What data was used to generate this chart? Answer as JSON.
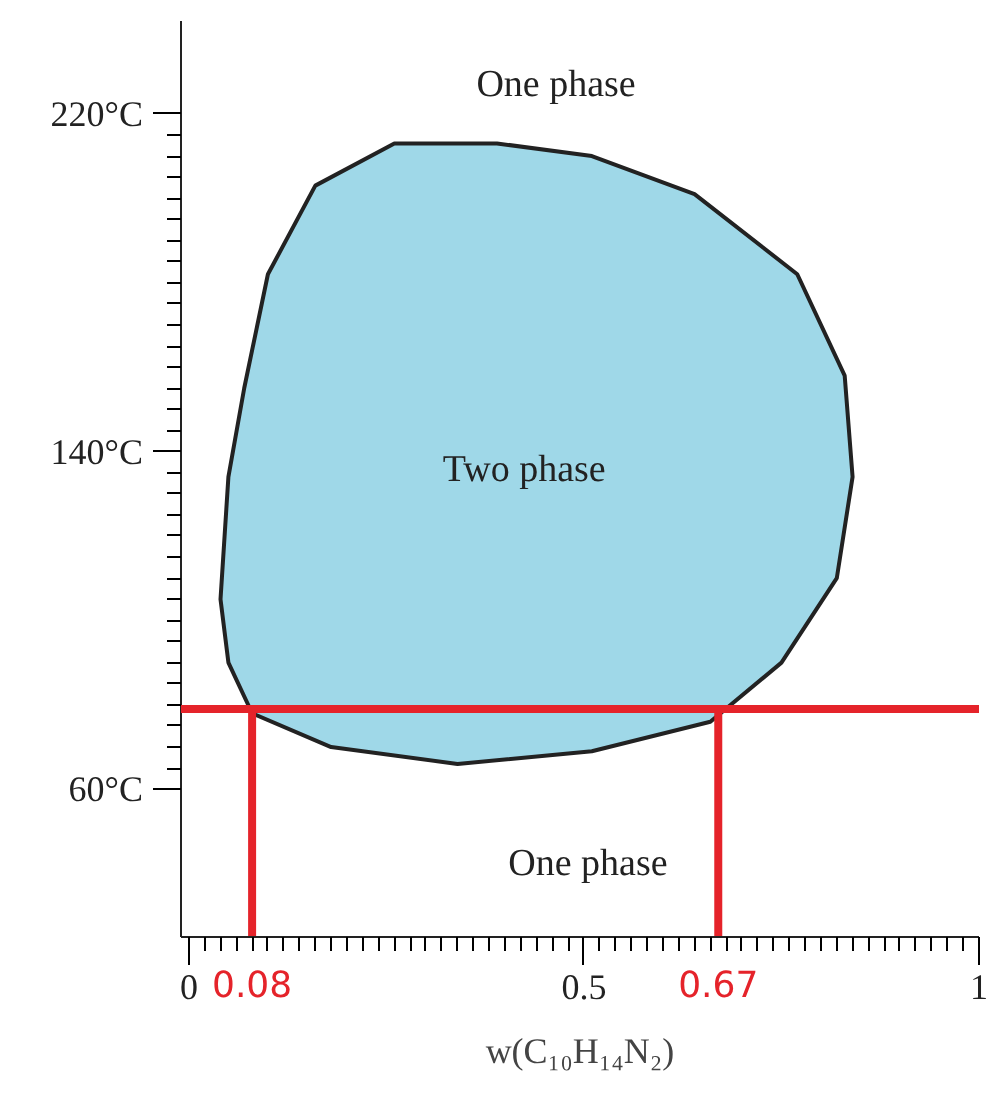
{
  "chart_data": {
    "type": "area",
    "xlabel": "w(C₁₀H₁₄N₂)",
    "xlim": [
      -0.01,
      1.0
    ],
    "ylim": [
      25,
      242
    ],
    "xticks": [
      0,
      0.5,
      1
    ],
    "yticks": [
      {
        "value": 60,
        "label": "60°C"
      },
      {
        "value": 140,
        "label": "140°C"
      },
      {
        "value": 220,
        "label": "220°C"
      }
    ],
    "grid": false,
    "series": [
      {
        "color": "#9fd8e8",
        "x": [
          0.04,
          0.05,
          0.07,
          0.1,
          0.16,
          0.26,
          0.39,
          0.51,
          0.64,
          0.77,
          0.83,
          0.84,
          0.82,
          0.75,
          0.66,
          0.51,
          0.34,
          0.18,
          0.08,
          0.05
        ],
        "values": [
          105,
          134,
          155,
          182,
          203,
          213,
          213,
          210,
          201,
          182,
          158,
          134,
          110,
          90,
          76,
          69,
          66,
          70,
          78,
          90
        ]
      }
    ],
    "ref_lines": [
      {
        "axis": "y",
        "value": 79,
        "color": "#e5232a"
      },
      {
        "axis": "x",
        "value": 0.08,
        "label": "0.08",
        "color": "#e5232a"
      },
      {
        "axis": "x",
        "value": 0.67,
        "label": "0.67",
        "color": "#e5232a"
      }
    ],
    "annotations": [
      "One phase",
      "Two phase",
      "One phase"
    ]
  }
}
